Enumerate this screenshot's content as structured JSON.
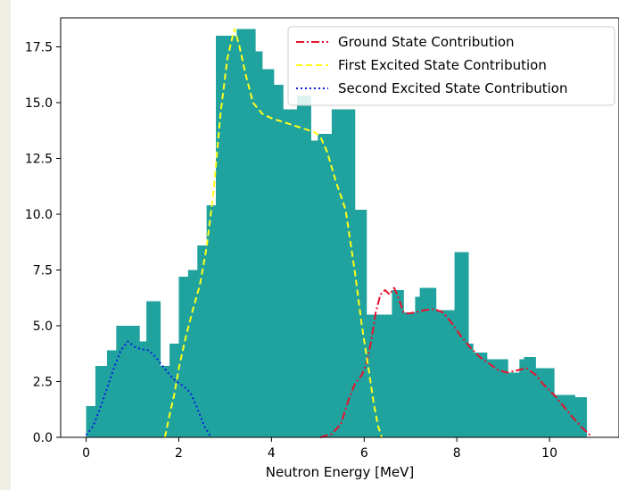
{
  "chart_data": {
    "type": "bar",
    "title": "",
    "xlabel": "Neutron Energy [MeV]",
    "ylabel": "",
    "xlim": [
      -0.55,
      11.5
    ],
    "ylim": [
      0,
      18.8
    ],
    "xticks": [
      0,
      2,
      4,
      6,
      8,
      10
    ],
    "yticks": [
      0.0,
      2.5,
      5.0,
      7.5,
      10.0,
      12.5,
      15.0,
      17.5
    ],
    "xtick_labels": [
      "0",
      "2",
      "4",
      "6",
      "8",
      "10"
    ],
    "ytick_labels": [
      "0.0",
      "2.5",
      "5.0",
      "7.5",
      "10.0",
      "12.5",
      "15.0",
      "17.5"
    ],
    "grid": false,
    "legend_position": "top-right",
    "histogram": {
      "color": "#20a39e",
      "bin_edges": [
        0.0,
        0.2,
        0.45,
        0.65,
        1.15,
        1.3,
        1.6,
        1.8,
        2.0,
        2.2,
        2.4,
        2.6,
        2.8,
        3.25,
        3.65,
        3.8,
        4.05,
        4.25,
        4.55,
        4.85,
        5.0,
        5.3,
        5.8,
        6.05,
        6.6,
        6.85,
        7.1,
        7.2,
        7.55,
        7.95,
        8.25,
        8.35,
        8.65,
        8.95,
        9.1,
        9.35,
        9.45,
        9.7,
        10.1,
        10.55,
        10.8
      ],
      "counts": [
        1.4,
        3.2,
        3.9,
        5.0,
        4.3,
        6.1,
        3.2,
        4.2,
        7.2,
        7.5,
        8.6,
        10.4,
        18.0,
        18.3,
        17.3,
        16.5,
        15.8,
        14.7,
        15.3,
        13.3,
        13.6,
        14.7,
        10.2,
        5.5,
        6.6,
        5.6,
        6.3,
        6.7,
        5.7,
        8.3,
        4.2,
        3.8,
        3.5,
        3.5,
        2.9,
        3.5,
        3.6,
        3.1,
        1.9,
        1.8
      ]
    },
    "series": [
      {
        "name": "Ground State Contribution",
        "color": "#e8112d",
        "dash": "dashdot",
        "x": [
          5.05,
          5.3,
          5.5,
          5.65,
          5.8,
          5.95,
          6.05,
          6.15,
          6.25,
          6.35,
          6.45,
          6.55,
          6.65,
          6.75,
          6.85,
          6.95,
          7.1,
          7.3,
          7.5,
          7.7,
          7.9,
          8.1,
          8.3,
          8.5,
          8.7,
          8.9,
          9.1,
          9.3,
          9.5,
          9.7,
          9.9,
          10.1,
          10.3,
          10.5,
          10.7,
          10.9
        ],
        "y": [
          0.0,
          0.15,
          0.6,
          1.6,
          2.4,
          2.8,
          3.3,
          4.3,
          5.6,
          6.4,
          6.6,
          6.4,
          6.7,
          6.2,
          5.6,
          5.55,
          5.6,
          5.7,
          5.75,
          5.6,
          5.1,
          4.5,
          4.0,
          3.6,
          3.3,
          3.0,
          2.9,
          3.0,
          3.1,
          2.8,
          2.3,
          1.9,
          1.4,
          0.9,
          0.45,
          0.05
        ]
      },
      {
        "name": "First Excited State Contribution",
        "color": "#ffff1a",
        "dash": "dashed",
        "x": [
          1.7,
          1.8,
          1.9,
          2.0,
          2.15,
          2.3,
          2.45,
          2.6,
          2.75,
          2.9,
          3.05,
          3.2,
          3.3,
          3.45,
          3.6,
          3.8,
          4.0,
          4.3,
          4.6,
          4.9,
          5.05,
          5.2,
          5.4,
          5.6,
          5.8,
          5.95,
          6.1,
          6.2,
          6.3,
          6.38
        ],
        "y": [
          0.0,
          1.0,
          1.9,
          3.1,
          4.5,
          5.7,
          6.8,
          8.5,
          11.0,
          14.5,
          17.0,
          18.3,
          17.6,
          16.2,
          15.0,
          14.5,
          14.3,
          14.1,
          13.9,
          13.7,
          13.5,
          12.8,
          11.4,
          10.2,
          7.4,
          5.0,
          3.0,
          1.6,
          0.5,
          0.0
        ]
      },
      {
        "name": "Second Excited State Contribution",
        "color": "#0a1fe0",
        "dash": "dotted",
        "x": [
          0.0,
          0.15,
          0.3,
          0.45,
          0.6,
          0.75,
          0.9,
          1.05,
          1.2,
          1.35,
          1.5,
          1.65,
          1.8,
          1.95,
          2.1,
          2.25,
          2.4,
          2.55,
          2.7
        ],
        "y": [
          0.1,
          0.5,
          1.3,
          2.2,
          3.1,
          3.9,
          4.3,
          4.05,
          3.95,
          3.9,
          3.6,
          3.2,
          2.8,
          2.5,
          2.3,
          2.0,
          1.3,
          0.5,
          0.0
        ]
      }
    ]
  }
}
